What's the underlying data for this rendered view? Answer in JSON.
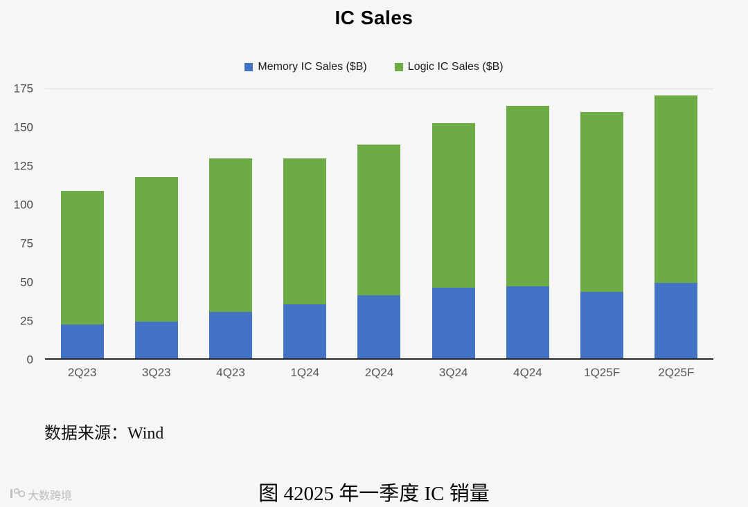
{
  "chart_data": {
    "type": "bar",
    "stacked": true,
    "title": "IC Sales",
    "categories": [
      "2Q23",
      "3Q23",
      "4Q23",
      "1Q24",
      "2Q24",
      "3Q24",
      "4Q24",
      "1Q25F",
      "2Q25F"
    ],
    "series": [
      {
        "name": "Memory IC Sales ($B)",
        "color": "#4472C4",
        "values": [
          22,
          24,
          30,
          35,
          41,
          46,
          47,
          43,
          49
        ]
      },
      {
        "name": "Logic IC Sales ($B)",
        "color": "#6DAB47",
        "values": [
          87,
          94,
          100,
          95,
          98,
          107,
          117,
          117,
          122
        ]
      }
    ],
    "totals": [
      109,
      118,
      130,
      130,
      139,
      153,
      164,
      160,
      171
    ],
    "xlabel": "",
    "ylabel": "",
    "ylim": [
      0,
      175
    ],
    "yticks": [
      0,
      25,
      50,
      75,
      100,
      125,
      150,
      175
    ],
    "grid": false,
    "legend_position": "top"
  },
  "captions": {
    "source": "数据来源：Wind",
    "figure": "图 42025 年一季度 IC 销量"
  },
  "watermark": "大数跨境"
}
